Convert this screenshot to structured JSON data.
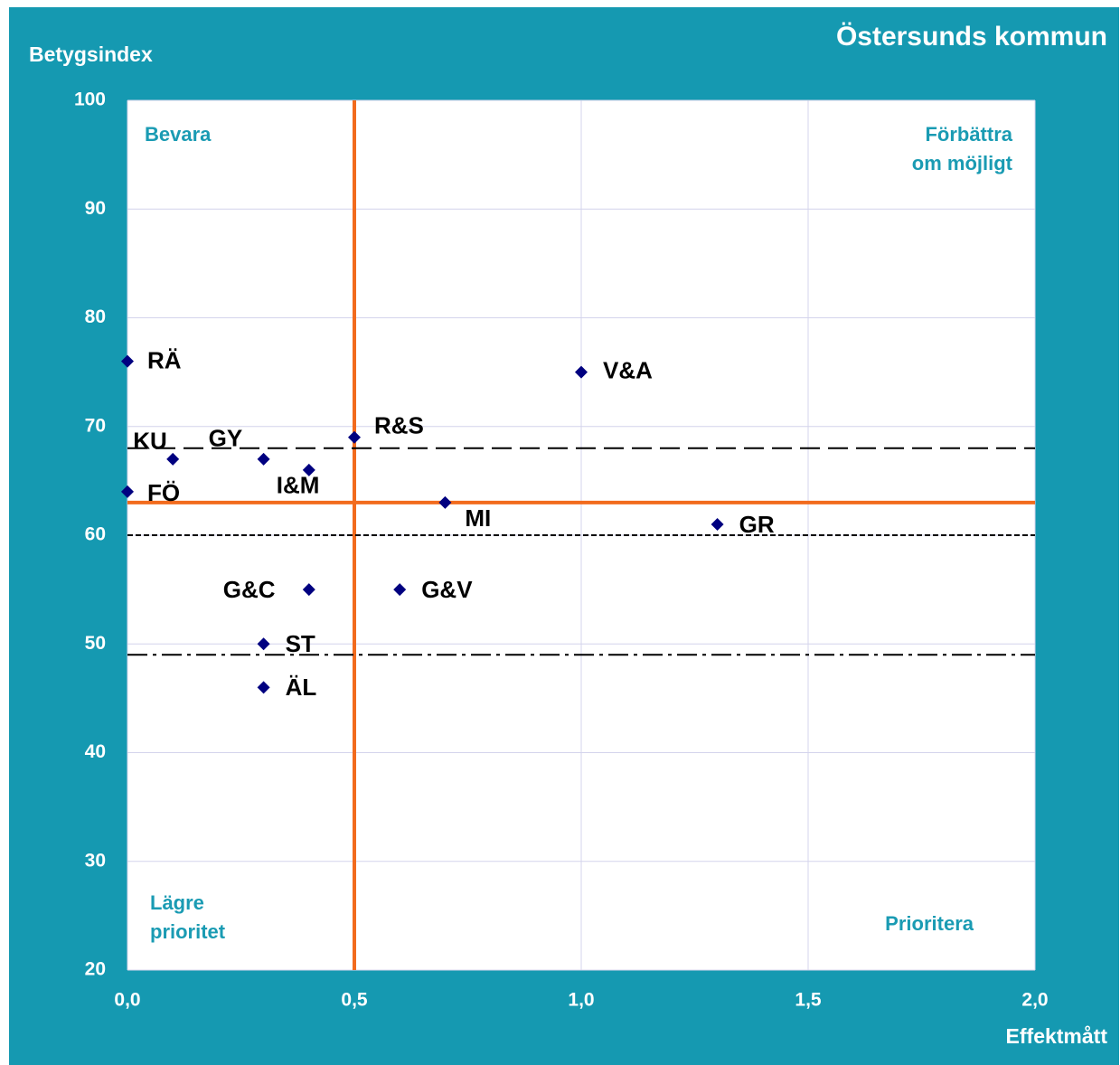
{
  "chart_data": {
    "type": "scatter",
    "title": "Östersunds kommun",
    "ylabel": "Betygsindex",
    "xlabel": "Effektmått",
    "x": [
      0,
      1.0,
      0.5,
      0.1,
      0.3,
      0.4,
      0,
      0.7,
      1.3,
      0.4,
      0.6,
      0.3,
      0.3
    ],
    "values": [
      76,
      75,
      69,
      67,
      67,
      66,
      64,
      63,
      61,
      55,
      55,
      50,
      46
    ],
    "point_labels": [
      "RÄ",
      "V&A",
      "R&S",
      "KU",
      "GY",
      "I&M",
      "FÖ",
      "MI",
      "GR",
      "G&C",
      "G&V",
      "ST",
      "ÄL"
    ],
    "color": "#000080",
    "xlim": [
      0,
      2.0
    ],
    "ylim": [
      20,
      100
    ],
    "xticks": [
      {
        "value": 0,
        "label": "0,0"
      },
      {
        "value": 0.5,
        "label": "0,5"
      },
      {
        "value": 1.0,
        "label": "1,0"
      },
      {
        "value": 1.5,
        "label": "1,5"
      },
      {
        "value": 2.0,
        "label": "2,0"
      }
    ],
    "yticks": [
      20,
      30,
      40,
      50,
      60,
      70,
      80,
      90,
      100
    ],
    "grid": true,
    "reference_lines": [
      {
        "axis": "x",
        "value": 0.5,
        "color": "#f26b1d",
        "style": "solid"
      },
      {
        "axis": "y",
        "value": 63,
        "color": "#f26b1d",
        "style": "solid"
      },
      {
        "axis": "y",
        "value": 68,
        "color": "#000000",
        "style": "dashed"
      },
      {
        "axis": "y",
        "value": 60,
        "color": "#000000",
        "style": "dotted"
      },
      {
        "axis": "y",
        "value": 49,
        "color": "#000000",
        "style": "dashdot"
      }
    ],
    "quadrant_labels": [
      {
        "lines": [
          "Bevara"
        ],
        "corner": "top-left"
      },
      {
        "lines": [
          "Förbättra",
          "om möjligt"
        ],
        "corner": "top-right"
      },
      {
        "lines": [
          "Lägre",
          "prioritet"
        ],
        "corner": "bottom-left"
      },
      {
        "lines": [
          "Prioritera"
        ],
        "corner": "bottom-right"
      }
    ]
  }
}
